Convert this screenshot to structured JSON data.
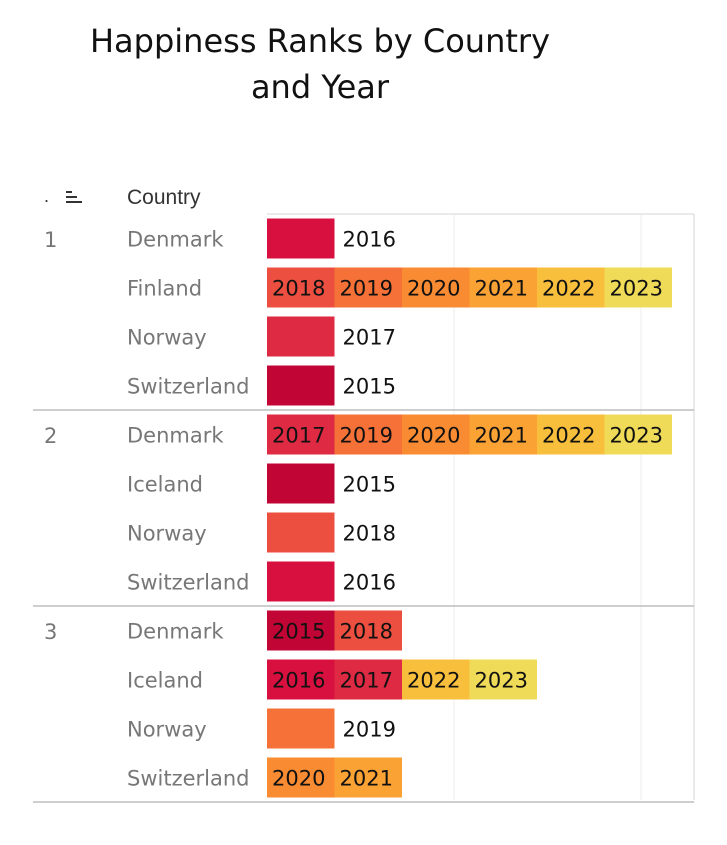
{
  "title_line1": "Happiness Ranks by Country",
  "title_line2": "and Year",
  "header": {
    "rank_marker": ".",
    "country": "Country"
  },
  "chart_data": {
    "type": "table",
    "title": "Happiness Ranks by Country and Year",
    "column_header": "Country",
    "groups": [
      {
        "rank": "1",
        "rows": [
          {
            "country": "Denmark",
            "years": [
              "2016"
            ]
          },
          {
            "country": "Finland",
            "years": [
              "2018",
              "2019",
              "2020",
              "2021",
              "2022",
              "2023"
            ]
          },
          {
            "country": "Norway",
            "years": [
              "2017"
            ]
          },
          {
            "country": "Switzerland",
            "years": [
              "2015"
            ]
          }
        ]
      },
      {
        "rank": "2",
        "rows": [
          {
            "country": "Denmark",
            "years": [
              "2017",
              "2019",
              "2020",
              "2021",
              "2022",
              "2023"
            ]
          },
          {
            "country": "Iceland",
            "years": [
              "2015"
            ]
          },
          {
            "country": "Norway",
            "years": [
              "2018"
            ]
          },
          {
            "country": "Switzerland",
            "years": [
              "2016"
            ]
          }
        ]
      },
      {
        "rank": "3",
        "rows": [
          {
            "country": "Denmark",
            "years": [
              "2015",
              "2018"
            ]
          },
          {
            "country": "Iceland",
            "years": [
              "2016",
              "2017",
              "2022",
              "2023"
            ]
          },
          {
            "country": "Norway",
            "years": [
              "2019"
            ]
          },
          {
            "country": "Switzerland",
            "years": [
              "2020",
              "2021"
            ]
          }
        ]
      }
    ],
    "year_colors": {
      "2015": "#c10534",
      "2016": "#d8103f",
      "2017": "#de2a43",
      "2018": "#ec4f40",
      "2019": "#f67137",
      "2020": "#f98b33",
      "2021": "#fba235",
      "2022": "#f8bf3c",
      "2023": "#efdb58"
    },
    "grid": true
  }
}
